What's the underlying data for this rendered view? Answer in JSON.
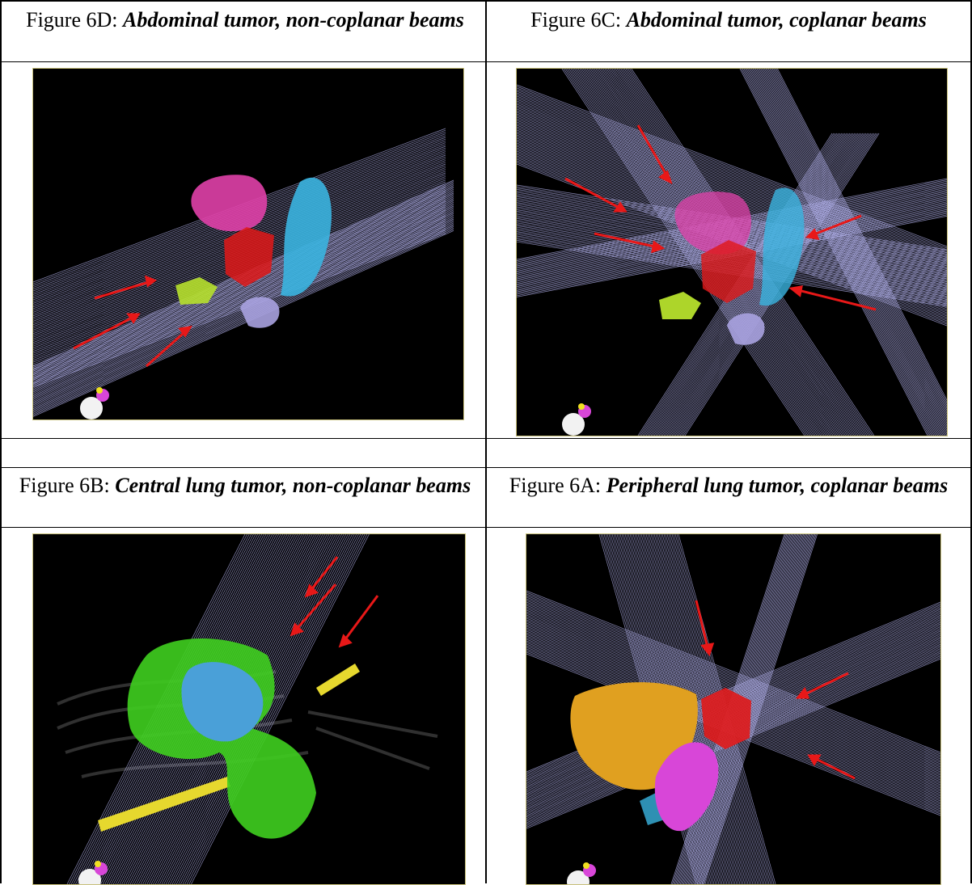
{
  "figures": [
    {
      "id": "6D",
      "prefix": "Figure 6D: ",
      "title": "Abdominal tumor, non-coplanar beams"
    },
    {
      "id": "6C",
      "prefix": "Figure 6C: ",
      "title": "Abdominal tumor, coplanar beams"
    },
    {
      "id": "6B",
      "prefix": "Figure 6B: ",
      "title": "Central lung tumor, non-coplanar beams"
    },
    {
      "id": "6A",
      "prefix": "Figure 6A: ",
      "title": "Peripheral lung tumor, coplanar beams"
    }
  ],
  "colors": {
    "beam": "#b9b8f5",
    "arrow": "#e81818",
    "tumor_red": "#e01818",
    "organ_pink": "#e040a8",
    "organ_cyan": "#3ab4e0",
    "organ_lime": "#b6e02c",
    "organ_lavender": "#a8a2e0",
    "organ_green": "#3fcf1f",
    "organ_blue": "#4aa0d8",
    "organ_yellow": "#e6d82e",
    "organ_orange": "#e0a020",
    "organ_magenta": "#d846d8"
  }
}
